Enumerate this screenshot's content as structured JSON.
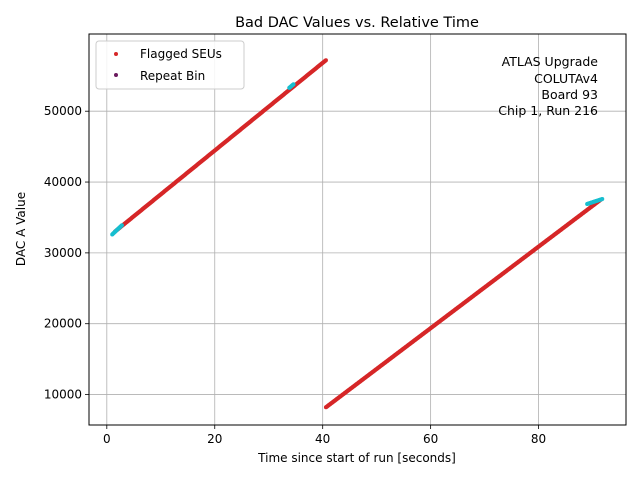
{
  "chart_data": {
    "type": "scatter",
    "title": "Bad DAC Values vs. Relative Time",
    "xlabel": "Time since start of run [seconds]",
    "ylabel": "DAC A Value",
    "xlim": [
      -3.3,
      96.2
    ],
    "ylim": [
      5700,
      60900
    ],
    "xticks": [
      0,
      20,
      40,
      60,
      80
    ],
    "xtick_labels": [
      "0",
      "20",
      "40",
      "60",
      "80"
    ],
    "yticks": [
      10000,
      20000,
      30000,
      40000,
      50000
    ],
    "ytick_labels": [
      "10000",
      "20000",
      "30000",
      "40000",
      "50000"
    ],
    "grid": true,
    "legend_position": "top-left",
    "annotation": [
      "ATLAS Upgrade",
      "COLUTAv4",
      "Board 93",
      "Chip 1, Run 216"
    ],
    "series": [
      {
        "name": "Flagged SEUs",
        "color": "#d62728",
        "marker": "dot",
        "segments": [
          {
            "x_start": 1.5,
            "x_end": 40.6,
            "y_start": 33000,
            "y_end": 57200
          },
          {
            "x_start": 40.6,
            "x_end": 91.5,
            "y_start": 8200,
            "y_end": 37500
          }
        ]
      },
      {
        "name": "Repeat Bin",
        "color": "#6b1a5e",
        "marker": "dot",
        "segments": []
      },
      {
        "name": "",
        "color": "#17becf",
        "marker": "dot",
        "segments": [
          {
            "x_start": 1.0,
            "x_end": 2.8,
            "y_start": 32600,
            "y_end": 33900
          },
          {
            "x_start": 33.8,
            "x_end": 34.6,
            "y_start": 53300,
            "y_end": 53800
          },
          {
            "x_start": 89.0,
            "x_end": 91.8,
            "y_start": 36900,
            "y_end": 37600
          }
        ]
      }
    ]
  }
}
